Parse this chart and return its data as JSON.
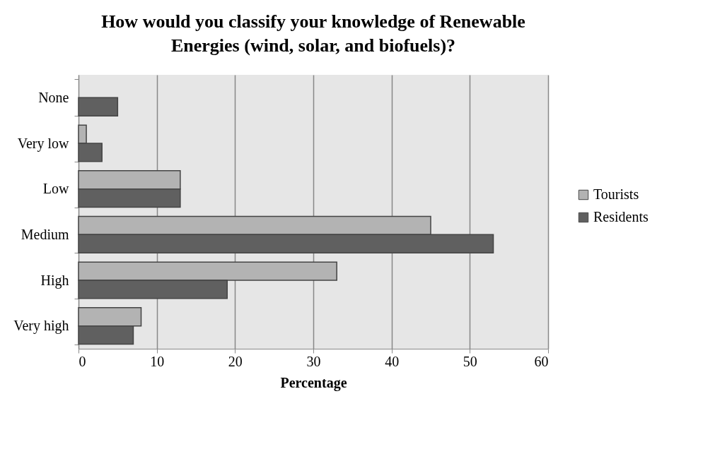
{
  "chart_data": {
    "type": "bar",
    "orientation": "horizontal",
    "title": "How would you classify your knowledge of Renewable Energies (wind, solar, and biofuels)?",
    "xlabel": "Percentage",
    "categories": [
      "None",
      "Very low",
      "Low",
      "Medium",
      "High",
      "Very high"
    ],
    "series": [
      {
        "name": "Tourists",
        "color": "#b3b3b3",
        "values": [
          null,
          1,
          13,
          45,
          33,
          8
        ]
      },
      {
        "name": "Residents",
        "color": "#606060",
        "values": [
          5,
          3,
          13,
          53,
          19,
          7
        ]
      }
    ],
    "xlim": [
      0,
      60
    ],
    "xticks": [
      0,
      10,
      20,
      30,
      40,
      50,
      60
    ],
    "grid": "x",
    "legend": "right"
  }
}
